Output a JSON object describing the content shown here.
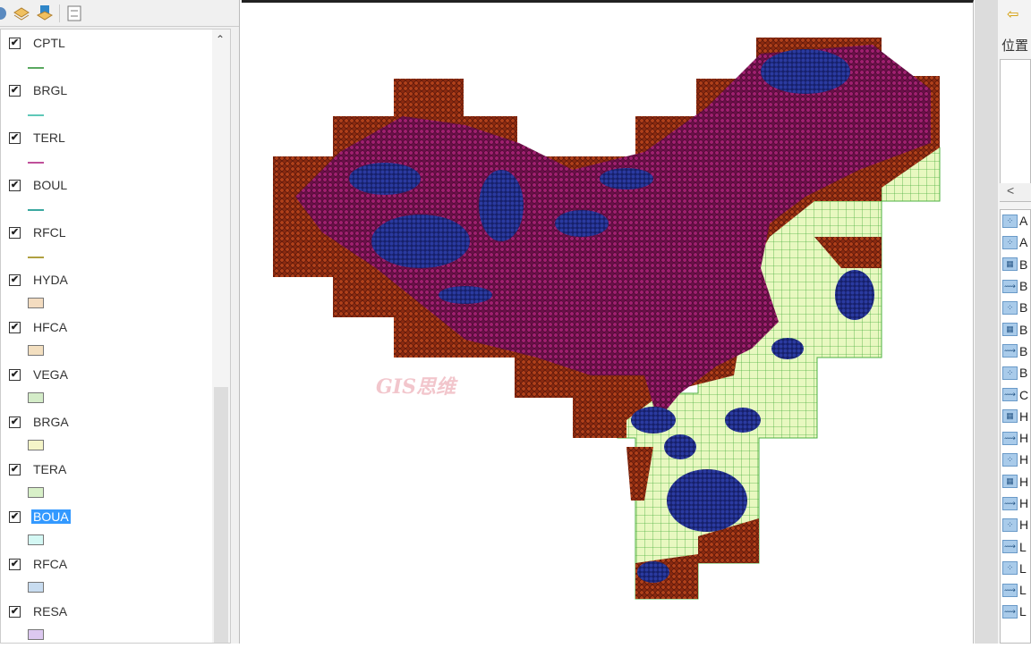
{
  "toc": {
    "layers": [
      {
        "name": "CPTL",
        "symbol": "line",
        "color": "#5aa860",
        "selected": false
      },
      {
        "name": "BRGL",
        "symbol": "line",
        "color": "#5fc8b8",
        "selected": false
      },
      {
        "name": "TERL",
        "symbol": "line",
        "color": "#c0509a",
        "selected": false
      },
      {
        "name": "BOUL",
        "symbol": "line",
        "color": "#3aa8a0",
        "selected": false
      },
      {
        "name": "RFCL",
        "symbol": "line",
        "color": "#b0a040",
        "selected": false
      },
      {
        "name": "HYDA",
        "symbol": "fill",
        "color": "#f3dcc0",
        "selected": false
      },
      {
        "name": "HFCA",
        "symbol": "fill",
        "color": "#f3dfc0",
        "selected": false
      },
      {
        "name": "VEGA",
        "symbol": "fill",
        "color": "#d4ecc8",
        "selected": false
      },
      {
        "name": "BRGA",
        "symbol": "fill",
        "color": "#f5f5c8",
        "selected": false
      },
      {
        "name": "TERA",
        "symbol": "fill",
        "color": "#d8f0c8",
        "selected": false
      },
      {
        "name": "BOUA",
        "symbol": "fill",
        "color": "#d4f8f4",
        "selected": true
      },
      {
        "name": "RFCA",
        "symbol": "fill",
        "color": "#c8dcf0",
        "selected": false
      },
      {
        "name": "RESA",
        "symbol": "fill",
        "color": "#dcc8f0",
        "selected": false
      }
    ],
    "check_mark": "✔"
  },
  "map": {
    "watermark": "GIS思维",
    "colors": {
      "brown": "#8b2a10",
      "purple": "#8a1a5a",
      "navy": "#1e2a80",
      "grid_fill": "#e8f8c0",
      "grid_line": "#4cb040"
    }
  },
  "catalog": {
    "location_label": "位置",
    "scroll_left": "<",
    "items": [
      {
        "label": "A",
        "icon": "point"
      },
      {
        "label": "A",
        "icon": "point"
      },
      {
        "label": "B",
        "icon": "polygon"
      },
      {
        "label": "B",
        "icon": "line"
      },
      {
        "label": "B",
        "icon": "point"
      },
      {
        "label": "B",
        "icon": "polygon"
      },
      {
        "label": "B",
        "icon": "line"
      },
      {
        "label": "B",
        "icon": "point"
      },
      {
        "label": "C",
        "icon": "line"
      },
      {
        "label": "H",
        "icon": "polygon"
      },
      {
        "label": "H",
        "icon": "line"
      },
      {
        "label": "H",
        "icon": "point"
      },
      {
        "label": "H",
        "icon": "polygon"
      },
      {
        "label": "H",
        "icon": "line"
      },
      {
        "label": "H",
        "icon": "point"
      },
      {
        "label": "L",
        "icon": "line"
      },
      {
        "label": "L",
        "icon": "point"
      },
      {
        "label": "L",
        "icon": "line"
      },
      {
        "label": "L",
        "icon": "line"
      }
    ]
  }
}
